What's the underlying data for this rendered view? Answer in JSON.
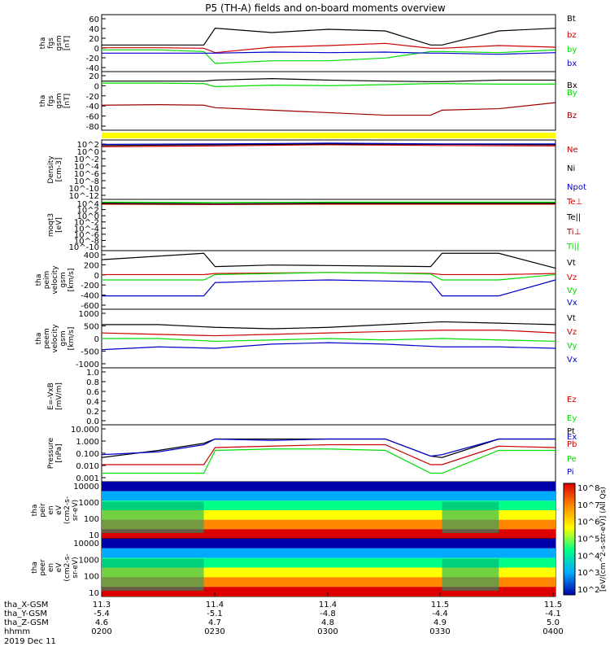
{
  "title": "P5 (TH-A) fields and on-board moments overview",
  "date_label": "2019 Dec 11",
  "colors": {
    "black": "#000000",
    "red": "#cc0000",
    "green": "#00dd00",
    "blue": "#0000cc",
    "darkred": "#990000",
    "yellow": "#ffff00"
  },
  "ephemeris": {
    "labels": [
      "tha_X-GSM",
      "tha_Y-GSM",
      "tha_Z-GSM",
      "hhmm"
    ],
    "rows": [
      [
        "11.3",
        "11.4",
        "11.4",
        "11.5",
        "11.5"
      ],
      [
        "-5.4",
        "-5.1",
        "-4.8",
        "-4.4",
        "-4.1"
      ],
      [
        "4.6",
        "4.7",
        "4.8",
        "4.9",
        "5.0"
      ],
      [
        "0200",
        "0230",
        "0300",
        "0330",
        "0400"
      ]
    ]
  },
  "chart_data": [
    {
      "type": "line",
      "ylabel": [
        "tha",
        "fgs",
        "gsm",
        "[nT]"
      ],
      "yticks": [
        "60",
        "40",
        "20",
        "0",
        "-20",
        "-40"
      ],
      "ylim": [
        -40,
        65
      ],
      "legend": [
        {
          "name": "Bt",
          "color": "#000000"
        },
        {
          "name": "bz",
          "color": "#cc0000"
        },
        {
          "name": "by",
          "color": "#00dd00"
        },
        {
          "name": "bx",
          "color": "#0000cc"
        }
      ],
      "x_hours": [
        2.0,
        2.25,
        2.45,
        2.5,
        2.75,
        3.0,
        3.25,
        3.45,
        3.5,
        3.75,
        4.0
      ],
      "series": [
        {
          "name": "Bt",
          "values": [
            9,
            9,
            9,
            40,
            32,
            38,
            35,
            9,
            9,
            35,
            40
          ]
        },
        {
          "name": "bz",
          "values": [
            4,
            4,
            3,
            -5,
            5,
            8,
            12,
            3,
            3,
            8,
            5
          ]
        },
        {
          "name": "by",
          "values": [
            0,
            0,
            -3,
            -25,
            -20,
            -20,
            -15,
            -3,
            -3,
            -5,
            0
          ]
        },
        {
          "name": "bx",
          "values": [
            -6,
            -6,
            -6,
            -6,
            -4,
            -5,
            -4,
            -6,
            -6,
            -8,
            -5
          ]
        }
      ]
    },
    {
      "type": "line",
      "ylabel": [
        "tha",
        "fgs",
        "gsm",
        "[nT]"
      ],
      "yticks": [
        "20",
        "0",
        "-20",
        "-40",
        "-60",
        "-80"
      ],
      "ylim": [
        -95,
        22
      ],
      "legend": [
        {
          "name": "Bx",
          "color": "#000000"
        },
        {
          "name": "By",
          "color": "#00dd00"
        },
        {
          "name": "Bz",
          "color": "#990000"
        }
      ],
      "x_hours": [
        2.0,
        2.25,
        2.45,
        2.5,
        2.75,
        3.0,
        3.25,
        3.45,
        3.5,
        3.75,
        4.0
      ],
      "series": [
        {
          "name": "Bx",
          "values": [
            3,
            3,
            3,
            5,
            8,
            5,
            3,
            2,
            2,
            5,
            5
          ]
        },
        {
          "name": "By",
          "values": [
            -1,
            -1,
            -2,
            -8,
            -5,
            -6,
            -4,
            -2,
            -2,
            -3,
            -3
          ]
        },
        {
          "name": "Bz",
          "values": [
            -45,
            -44,
            -45,
            -50,
            -55,
            -60,
            -65,
            -65,
            -55,
            -52,
            -40
          ]
        }
      ]
    },
    {
      "type": "line",
      "ylabel": [
        "Density",
        "[cm-3]"
      ],
      "yticks": [
        "10^2",
        "10^0",
        "10^-2",
        "10^-4",
        "10^-6",
        "10^-8",
        "10^-10",
        "10^-12"
      ],
      "ylim_log10": [
        -13,
        2
      ],
      "legend": [
        {
          "name": "Ne",
          "color": "#cc0000"
        },
        {
          "name": "Ni",
          "color": "#000000"
        },
        {
          "name": "Npot",
          "color": "#0000cc"
        }
      ],
      "x_hours": [
        2.0,
        2.5,
        3.0,
        3.5,
        4.0
      ],
      "series": [
        {
          "name": "Ne",
          "values_log10": [
            0.3,
            0.5,
            0.8,
            0.6,
            0.5
          ]
        },
        {
          "name": "Ni",
          "values_log10": [
            0.6,
            0.8,
            1.0,
            0.9,
            0.8
          ]
        },
        {
          "name": "Npot",
          "values_log10": [
            0.9,
            1.0,
            1.2,
            1.0,
            1.0
          ]
        }
      ]
    },
    {
      "type": "line",
      "ylabel": [
        "moqt3",
        "[eV]"
      ],
      "yticks": [
        "10^4",
        "10^2",
        "10^0",
        "10^-2",
        "10^-4",
        "10^-6",
        "10^-8",
        "10^-10"
      ],
      "ylim_log10": [
        -11,
        4
      ],
      "legend": [
        {
          "name": "Te⊥",
          "color": "#cc0000"
        },
        {
          "name": "Te||",
          "color": "#000000"
        },
        {
          "name": "Ti⊥",
          "color": "#990000"
        },
        {
          "name": "Ti||",
          "color": "#00dd00"
        }
      ],
      "x_hours": [
        2.0,
        2.5,
        3.0,
        3.5,
        4.0
      ],
      "series": [
        {
          "name": "Te⊥",
          "values_log10": [
            2.8,
            2.6,
            2.8,
            2.8,
            2.8
          ]
        },
        {
          "name": "Te||",
          "values_log10": [
            2.9,
            2.7,
            2.9,
            2.9,
            2.9
          ]
        },
        {
          "name": "Ti⊥",
          "values_log10": [
            2.6,
            2.5,
            2.6,
            2.6,
            2.6
          ]
        },
        {
          "name": "Ti||",
          "values_log10": [
            3.2,
            3.1,
            3.2,
            3.2,
            3.2
          ]
        }
      ]
    },
    {
      "type": "line",
      "ylabel": [
        "tha",
        "peim",
        "velocity",
        "gsm",
        "[km/s]"
      ],
      "yticks": [
        "400",
        "200",
        "0",
        "-200",
        "-400",
        "-600"
      ],
      "ylim": [
        -650,
        450
      ],
      "legend": [
        {
          "name": "Vt",
          "color": "#000000"
        },
        {
          "name": "Vz",
          "color": "#cc0000"
        },
        {
          "name": "Vy",
          "color": "#00dd00"
        },
        {
          "name": "Vx",
          "color": "#0000cc"
        }
      ],
      "x_hours": [
        2.0,
        2.45,
        2.5,
        2.75,
        3.0,
        3.25,
        3.45,
        3.5,
        3.75,
        4.0
      ],
      "series": [
        {
          "name": "Vt",
          "values": [
            280,
            400,
            150,
            180,
            170,
            160,
            150,
            400,
            400,
            120
          ]
        },
        {
          "name": "Vz",
          "values": [
            0,
            0,
            20,
            30,
            40,
            30,
            20,
            0,
            0,
            20
          ]
        },
        {
          "name": "Vy",
          "values": [
            -100,
            -100,
            0,
            20,
            40,
            30,
            10,
            -100,
            -100,
            0
          ]
        },
        {
          "name": "Vx",
          "values": [
            -400,
            -400,
            -150,
            -120,
            -100,
            -120,
            -140,
            -400,
            -400,
            -100
          ]
        }
      ]
    },
    {
      "type": "line",
      "ylabel": [
        "tha",
        "peem",
        "velocity",
        "gsm",
        "[km/s]"
      ],
      "yticks": [
        "1000",
        "500",
        "0",
        "-500",
        "-1000"
      ],
      "ylim": [
        -1050,
        1050
      ],
      "legend": [
        {
          "name": "Vt",
          "color": "#000000"
        },
        {
          "name": "Vz",
          "color": "#cc0000"
        },
        {
          "name": "Vy",
          "color": "#00dd00"
        },
        {
          "name": "Vx",
          "color": "#0000cc"
        }
      ],
      "x_hours": [
        2.0,
        2.25,
        2.5,
        2.75,
        3.0,
        3.25,
        3.5,
        3.75,
        4.0
      ],
      "series": [
        {
          "name": "Vt",
          "values": [
            500,
            500,
            400,
            350,
            400,
            500,
            600,
            550,
            500
          ]
        },
        {
          "name": "Vz",
          "values": [
            200,
            150,
            100,
            150,
            200,
            250,
            300,
            300,
            200
          ]
        },
        {
          "name": "Vy",
          "values": [
            0,
            0,
            -100,
            -50,
            0,
            -50,
            0,
            -50,
            -100
          ]
        },
        {
          "name": "Vx",
          "values": [
            -400,
            -300,
            -350,
            -200,
            -150,
            -200,
            -300,
            -300,
            -350
          ]
        }
      ]
    },
    {
      "type": "line",
      "ylabel": [
        "E=-VxB",
        "[mV/m]"
      ],
      "yticks": [
        "1.0",
        "0.8",
        "0.6",
        "0.4",
        "0.2",
        "0.0"
      ],
      "ylim": [
        0,
        1.0
      ],
      "legend": [
        {
          "name": "Ez",
          "color": "#cc0000"
        },
        {
          "name": "Ey",
          "color": "#00dd00"
        },
        {
          "name": "Ex",
          "color": "#0000cc"
        }
      ],
      "x_hours": [
        2.0,
        4.0
      ],
      "series": []
    },
    {
      "type": "line",
      "ylabel": [
        "Pressure",
        "[nPa]"
      ],
      "yticks": [
        "10.000",
        "1.000",
        "0.100",
        "0.010",
        "0.001"
      ],
      "ylim_log10": [
        -3,
        1
      ],
      "legend": [
        {
          "name": "Pt",
          "color": "#000000"
        },
        {
          "name": "Pb",
          "color": "#cc0000"
        },
        {
          "name": "Pe",
          "color": "#00dd00"
        },
        {
          "name": "Pi",
          "color": "#0000cc"
        }
      ],
      "x_hours": [
        2.0,
        2.25,
        2.45,
        2.5,
        2.75,
        3.0,
        3.25,
        3.45,
        3.5,
        3.75,
        4.0
      ],
      "series": [
        {
          "name": "Pt",
          "values_log10": [
            -1.3,
            -0.8,
            -0.3,
            0.0,
            0.0,
            0.0,
            0.0,
            -1.2,
            -1.3,
            0.0,
            0.0
          ]
        },
        {
          "name": "Pb",
          "values_log10": [
            -1.8,
            -1.8,
            -1.8,
            -0.6,
            -0.5,
            -0.4,
            -0.4,
            -1.8,
            -1.8,
            -0.5,
            -0.6
          ]
        },
        {
          "name": "Pe",
          "values_log10": [
            -2.4,
            -2.4,
            -2.4,
            -0.8,
            -0.7,
            -0.7,
            -0.8,
            -2.4,
            -2.4,
            -0.8,
            -0.8
          ]
        },
        {
          "name": "Pi",
          "values_log10": [
            -1.1,
            -0.9,
            -0.4,
            0.0,
            -0.1,
            0.0,
            0.0,
            -1.2,
            -1.1,
            0.0,
            0.0
          ]
        }
      ]
    },
    {
      "type": "heatmap",
      "ylabel": [
        "tha",
        "peir",
        "en",
        "eV",
        "(cm2-s-",
        "sr-eV)"
      ],
      "yticks": [
        "10000",
        "1000",
        "100",
        "10"
      ],
      "ylim": [
        5,
        30000
      ],
      "colorbar_ticks": [
        "10^8",
        "10^7",
        "10^6",
        "10^5",
        "10^4",
        "10^3",
        "10^2"
      ]
    },
    {
      "type": "heatmap",
      "ylabel": [
        "tha",
        "peer",
        "en",
        "eV",
        "(cm2-s-",
        "sr-eV)"
      ],
      "yticks": [
        "10000",
        "1000",
        "100",
        "10"
      ],
      "ylim": [
        5,
        30000
      ],
      "colorbar_ticks": [
        "10^8",
        "10^7",
        "10^6",
        "10^5",
        "10^4",
        "10^3",
        "10^2"
      ],
      "colorbar_label": "[eV/(cm^2-s-str-eV)] (All Qs)"
    }
  ]
}
